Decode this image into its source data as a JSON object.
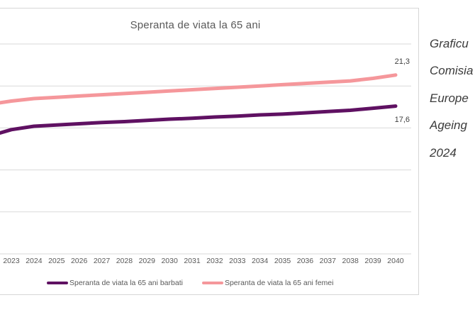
{
  "chart_data": {
    "type": "line",
    "title": "Speranta de viata la 65 ani",
    "categories": [
      "2023",
      "2024",
      "2025",
      "2026",
      "2027",
      "2028",
      "2029",
      "2030",
      "2031",
      "2032",
      "2033",
      "2034",
      "2035",
      "2036",
      "2037",
      "2038",
      "2039",
      "2040"
    ],
    "series": [
      {
        "name": "Speranta de viata la 65 ani barbati",
        "color": "#5f1162",
        "edge_value": 14.4,
        "end_label": "17,6",
        "values": [
          14.8,
          15.2,
          15.35,
          15.5,
          15.65,
          15.75,
          15.9,
          16.05,
          16.15,
          16.3,
          16.4,
          16.55,
          16.65,
          16.8,
          16.95,
          17.1,
          17.35,
          17.6
        ]
      },
      {
        "name": "Speranta de viata la 65 ani femei",
        "color": "#f5979b",
        "edge_value": 18.0,
        "end_label": "21,3",
        "values": [
          18.2,
          18.5,
          18.65,
          18.8,
          18.95,
          19.1,
          19.25,
          19.4,
          19.55,
          19.7,
          19.85,
          20.0,
          20.15,
          20.3,
          20.45,
          20.6,
          20.9,
          21.3
        ]
      }
    ],
    "ylim": [
      0,
      25
    ],
    "gridline_step": 5,
    "grid": true,
    "legend_position": "bottom"
  },
  "side_text": {
    "lines": [
      "Graficu",
      "Comisia",
      "Europe",
      "Ageing",
      "2024"
    ]
  },
  "colors": {
    "gridline": "#d9d9d9",
    "frame_border": "#d6d6d6",
    "title_text": "#595959",
    "axis_label_text": "#595959",
    "data_label_text": "#404040",
    "side_text": "#3b3b3b"
  }
}
